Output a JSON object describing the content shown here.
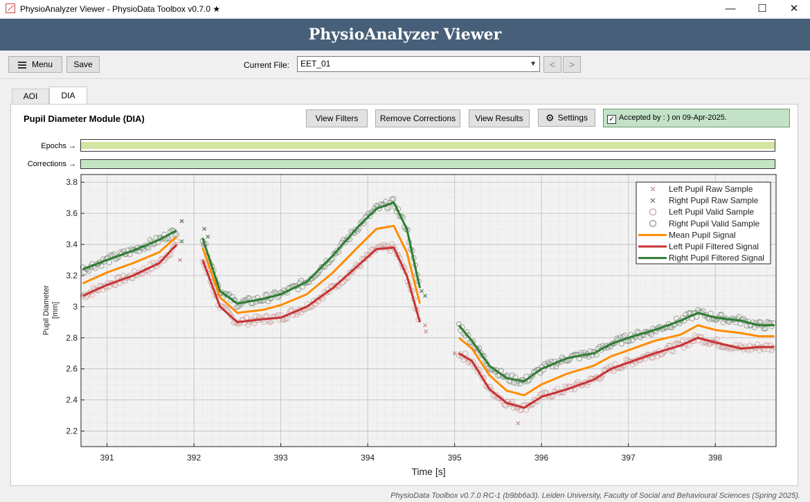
{
  "window": {
    "title": "PhysioAnalyzer Viewer - PhysioData Toolbox v0.7.0 ★",
    "minimize": "—",
    "maximize": "☐",
    "close": "✕"
  },
  "header": {
    "title": "PhysioAnalyzer Viewer"
  },
  "toolbar": {
    "menu_label": "Menu",
    "save_label": "Save",
    "current_file_label": "Current File:",
    "current_file_value": "EET_01",
    "prev": "<",
    "next": ">"
  },
  "tabs": [
    {
      "label": "AOI",
      "active": false
    },
    {
      "label": "DIA",
      "active": true
    }
  ],
  "module": {
    "title": "Pupil Diameter Module (DIA)",
    "buttons": {
      "view_filters": "View Filters",
      "remove_corrections": "Remove Corrections",
      "view_results": "View Results",
      "settings": "Settings"
    },
    "accepted_text": "Accepted by : ) on 09-Apr-2025.",
    "accepted_checked": true
  },
  "tracks": {
    "epochs_label": "Epochs →",
    "corrections_label": "Corrections →",
    "epochs_color": "#d3e6a1",
    "corrections_color": "#c4e5c4"
  },
  "colors": {
    "mean": "#ff8c00",
    "left": "#c83232",
    "right": "#2e7d32",
    "left_marker": "#c89a9a",
    "right_marker": "#7a8a7a"
  },
  "chart_data": {
    "type": "line",
    "xlabel": "Time [s]",
    "ylabel": "Pupil Diameter\n[mm]",
    "xlim": [
      390.7,
      398.7
    ],
    "ylim": [
      2.1,
      3.85
    ],
    "xticks": [
      391,
      392,
      393,
      394,
      395,
      396,
      397,
      398
    ],
    "yticks": [
      2.2,
      2.4,
      2.6,
      2.8,
      3.0,
      3.2,
      3.4,
      3.6,
      3.8
    ],
    "ytick_labels": [
      "2.2",
      "2.4",
      "2.6",
      "2.8",
      "3",
      "3.2",
      "3.4",
      "3.6",
      "3.8"
    ],
    "grid": true,
    "legend_position": "top-right",
    "legend": [
      {
        "label": "Left Pupil Raw Sample",
        "kind": "x",
        "color": "#c89a9a"
      },
      {
        "label": "Right Pupil Raw Sample",
        "kind": "x",
        "color": "#6e8a6e"
      },
      {
        "label": "Left Pupil Valid Sample",
        "kind": "o",
        "color": "#c89a9a"
      },
      {
        "label": "Right Pupil Valid Sample",
        "kind": "o",
        "color": "#8a8a8a"
      },
      {
        "label": "Mean Pupil Signal",
        "kind": "line",
        "color": "#ff8c00"
      },
      {
        "label": "Left Pupil Filtered Signal",
        "kind": "line",
        "color": "#c83232"
      },
      {
        "label": "Right Pupil Filtered Signal",
        "kind": "line",
        "color": "#2e7d32"
      }
    ],
    "series": [
      {
        "name": "Right Pupil Filtered Signal",
        "color": "#2e7d32",
        "segments": [
          [
            [
              390.72,
              3.24
            ],
            [
              391.0,
              3.3
            ],
            [
              391.3,
              3.36
            ],
            [
              391.6,
              3.43
            ],
            [
              391.8,
              3.49
            ]
          ],
          [
            [
              392.1,
              3.44
            ],
            [
              392.3,
              3.1
            ],
            [
              392.5,
              3.02
            ],
            [
              392.8,
              3.05
            ],
            [
              393.0,
              3.08
            ],
            [
              393.3,
              3.16
            ],
            [
              393.6,
              3.33
            ],
            [
              393.9,
              3.52
            ],
            [
              394.1,
              3.63
            ],
            [
              394.3,
              3.67
            ],
            [
              394.45,
              3.5
            ],
            [
              394.6,
              3.12
            ]
          ],
          [
            [
              395.05,
              2.88
            ],
            [
              395.2,
              2.78
            ],
            [
              395.4,
              2.62
            ],
            [
              395.6,
              2.54
            ],
            [
              395.8,
              2.52
            ],
            [
              396.0,
              2.6
            ],
            [
              396.3,
              2.67
            ],
            [
              396.6,
              2.7
            ],
            [
              396.8,
              2.76
            ],
            [
              397.0,
              2.8
            ],
            [
              397.3,
              2.85
            ],
            [
              397.6,
              2.91
            ],
            [
              397.8,
              2.96
            ],
            [
              398.0,
              2.93
            ],
            [
              398.3,
              2.91
            ],
            [
              398.5,
              2.88
            ],
            [
              398.68,
              2.88
            ]
          ]
        ]
      },
      {
        "name": "Mean Pupil Signal",
        "color": "#ff8c00",
        "segments": [
          [
            [
              390.72,
              3.15
            ],
            [
              391.0,
              3.22
            ],
            [
              391.3,
              3.28
            ],
            [
              391.6,
              3.35
            ],
            [
              391.8,
              3.45
            ]
          ],
          [
            [
              392.1,
              3.38
            ],
            [
              392.3,
              3.06
            ],
            [
              392.5,
              2.96
            ],
            [
              392.8,
              2.98
            ],
            [
              393.0,
              3.01
            ],
            [
              393.3,
              3.08
            ],
            [
              393.6,
              3.22
            ],
            [
              393.9,
              3.39
            ],
            [
              394.1,
              3.5
            ],
            [
              394.3,
              3.52
            ],
            [
              394.45,
              3.35
            ],
            [
              394.6,
              3.02
            ]
          ],
          [
            [
              395.05,
              2.8
            ],
            [
              395.2,
              2.73
            ],
            [
              395.4,
              2.56
            ],
            [
              395.6,
              2.46
            ],
            [
              395.8,
              2.43
            ],
            [
              396.0,
              2.5
            ],
            [
              396.3,
              2.57
            ],
            [
              396.6,
              2.62
            ],
            [
              396.8,
              2.68
            ],
            [
              397.0,
              2.72
            ],
            [
              397.3,
              2.78
            ],
            [
              397.6,
              2.82
            ],
            [
              397.8,
              2.88
            ],
            [
              398.0,
              2.85
            ],
            [
              398.3,
              2.83
            ],
            [
              398.5,
              2.81
            ],
            [
              398.68,
              2.81
            ]
          ]
        ]
      },
      {
        "name": "Left Pupil Filtered Signal",
        "color": "#c83232",
        "segments": [
          [
            [
              390.72,
              3.07
            ],
            [
              391.0,
              3.14
            ],
            [
              391.3,
              3.2
            ],
            [
              391.6,
              3.28
            ],
            [
              391.8,
              3.4
            ]
          ],
          [
            [
              392.1,
              3.3
            ],
            [
              392.3,
              3.0
            ],
            [
              392.5,
              2.9
            ],
            [
              392.8,
              2.92
            ],
            [
              393.0,
              2.93
            ],
            [
              393.3,
              3.0
            ],
            [
              393.6,
              3.12
            ],
            [
              393.9,
              3.27
            ],
            [
              394.1,
              3.37
            ],
            [
              394.3,
              3.38
            ],
            [
              394.45,
              3.2
            ],
            [
              394.6,
              2.9
            ]
          ],
          [
            [
              395.05,
              2.7
            ],
            [
              395.2,
              2.65
            ],
            [
              395.4,
              2.47
            ],
            [
              395.6,
              2.38
            ],
            [
              395.8,
              2.35
            ],
            [
              396.0,
              2.42
            ],
            [
              396.3,
              2.47
            ],
            [
              396.6,
              2.53
            ],
            [
              396.8,
              2.6
            ],
            [
              397.0,
              2.64
            ],
            [
              397.3,
              2.7
            ],
            [
              397.6,
              2.75
            ],
            [
              397.8,
              2.8
            ],
            [
              398.0,
              2.77
            ],
            [
              398.3,
              2.73
            ],
            [
              398.5,
              2.74
            ],
            [
              398.68,
              2.74
            ]
          ]
        ]
      }
    ]
  },
  "footer": "PhysioData Toolbox v0.7.0 RC-1 (b9bb6a3). Leiden University, Faculty of Social and Behavioural Sciences (Spring 2025)."
}
